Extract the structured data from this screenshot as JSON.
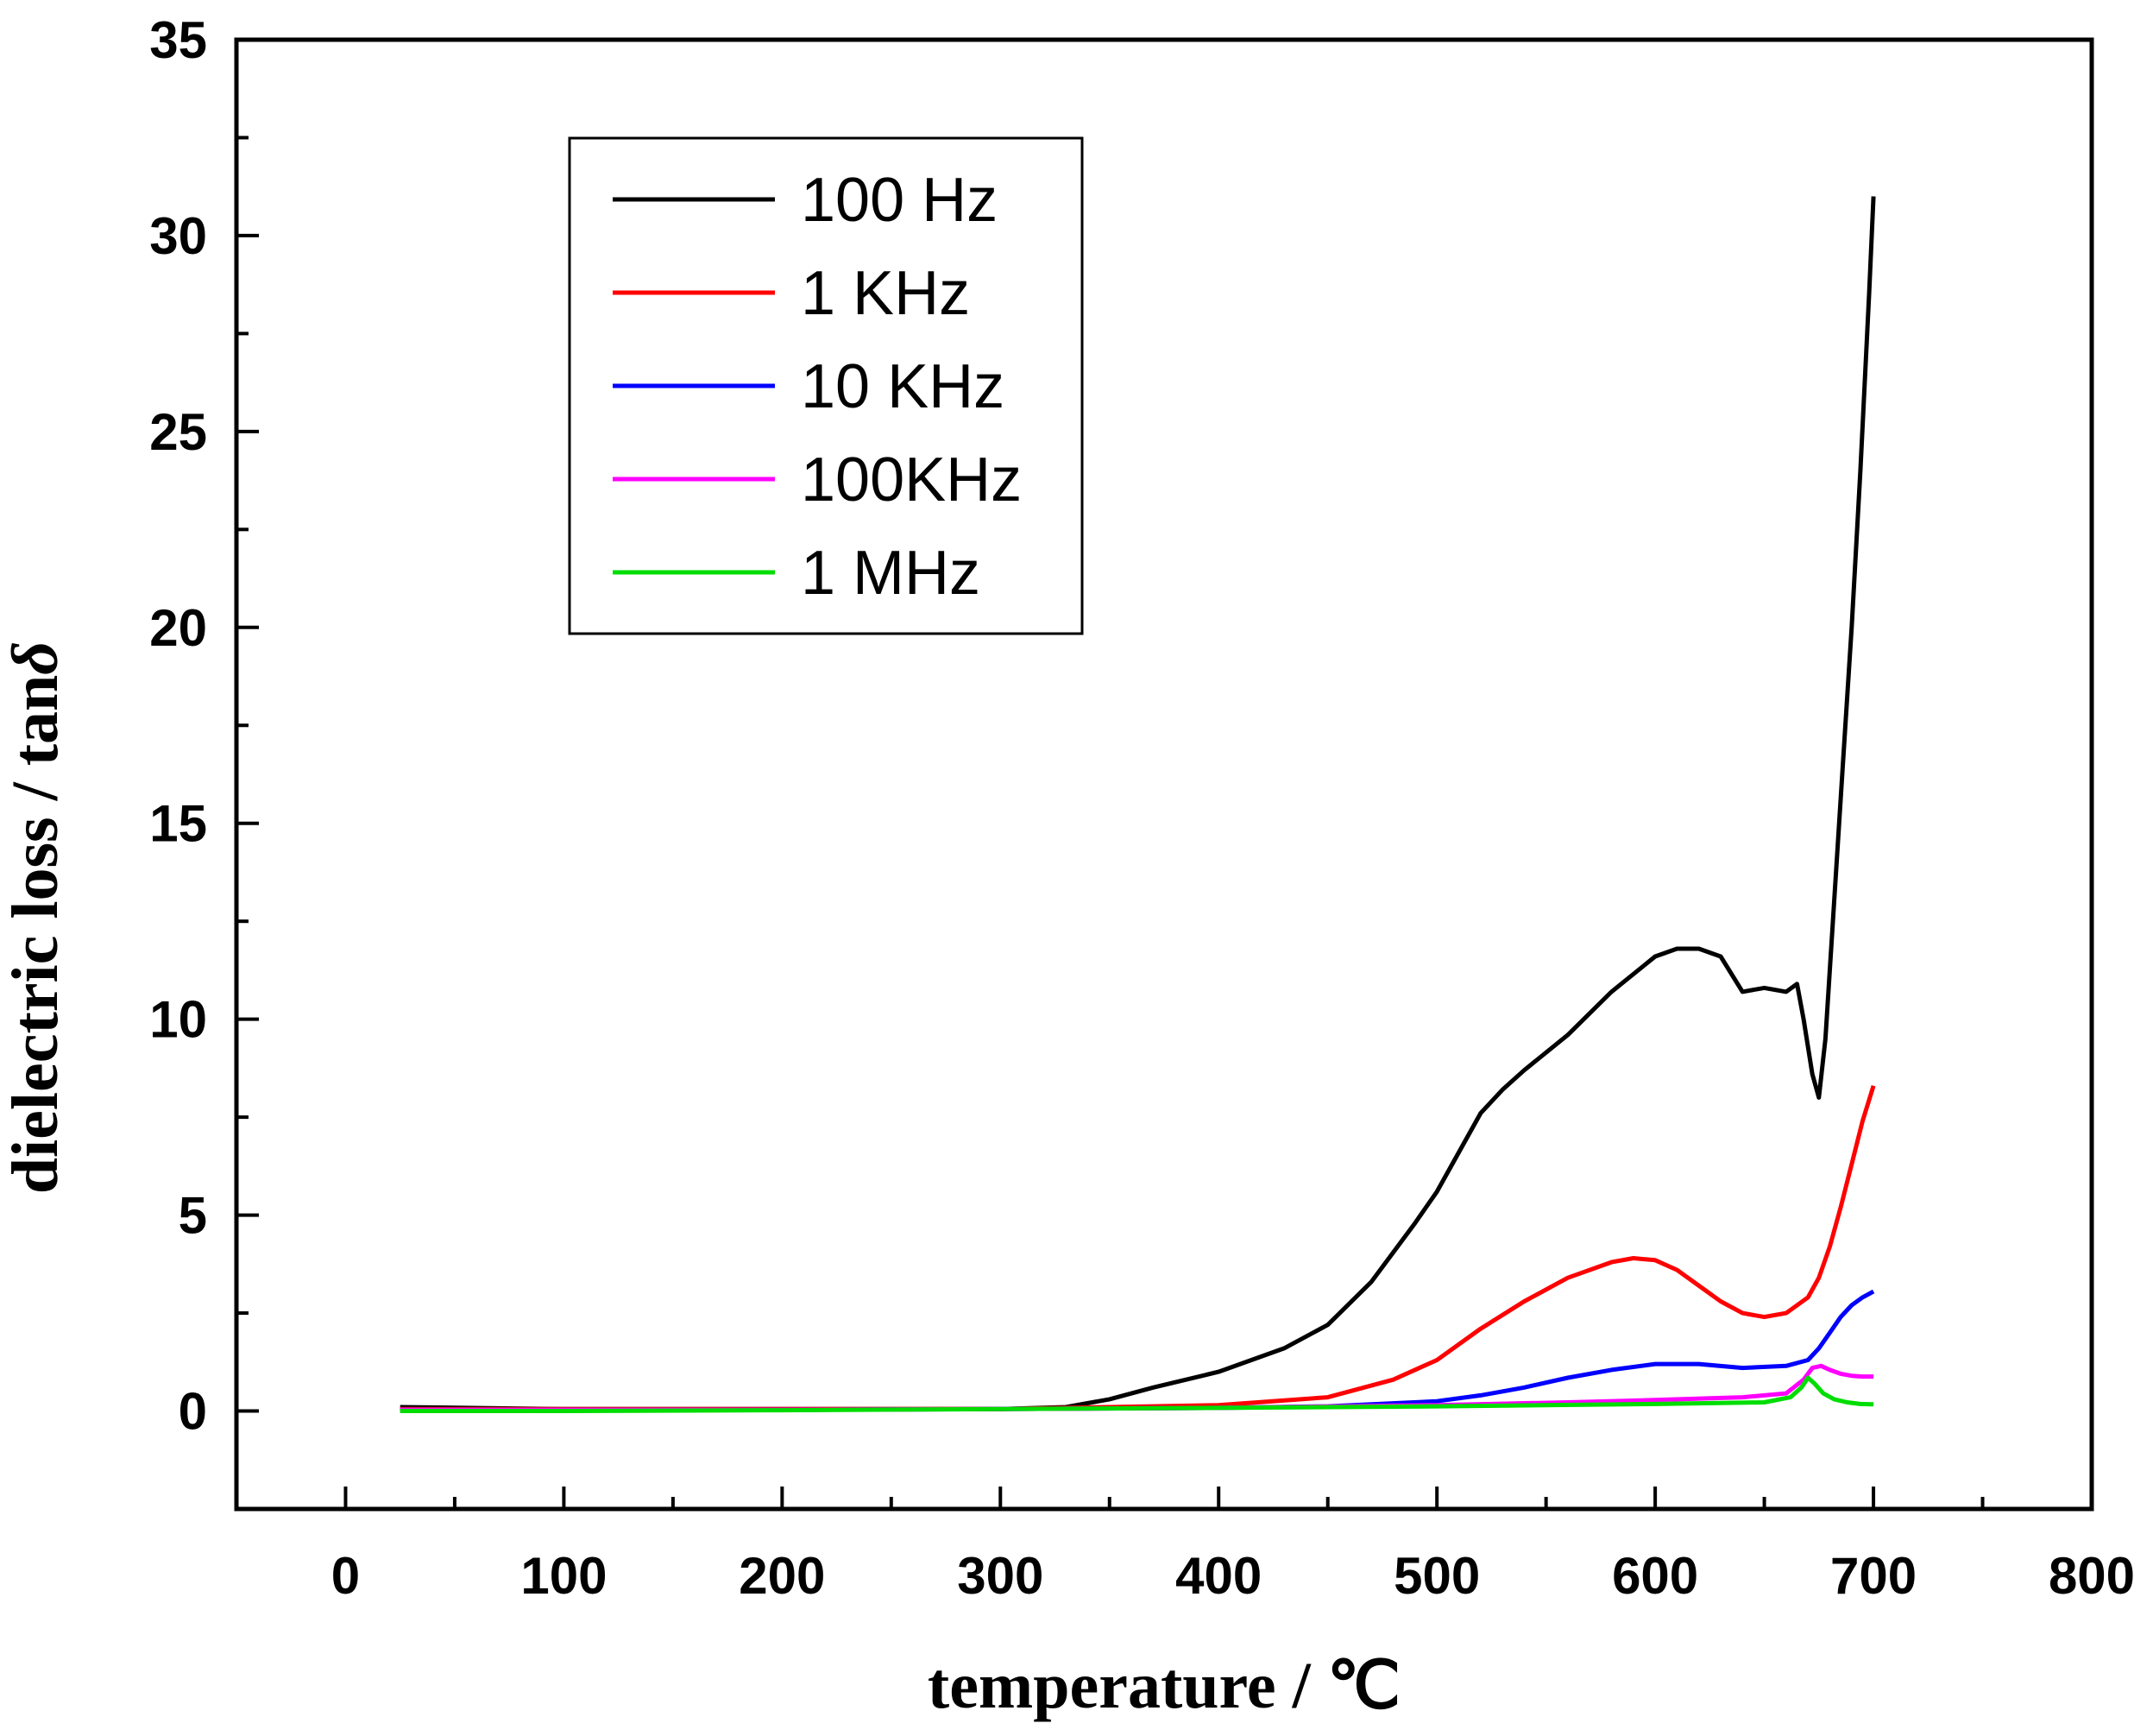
{
  "chart_data": {
    "type": "line",
    "title": "",
    "xlabel": "temperature / ℃",
    "ylabel_prefix": "dielectric loss / tan",
    "ylabel_symbol": "δ",
    "xlim": [
      -50,
      800
    ],
    "ylim": [
      -2.5,
      35
    ],
    "xticks": [
      0,
      100,
      200,
      300,
      400,
      500,
      600,
      700,
      800
    ],
    "yticks": [
      0,
      5,
      10,
      15,
      20,
      25,
      30,
      35
    ],
    "grid": false,
    "legend_position": "top-left",
    "series": [
      {
        "name": "100 Hz",
        "color": "#000000",
        "x": [
          25,
          100,
          200,
          300,
          330,
          350,
          370,
          400,
          430,
          450,
          470,
          490,
          500,
          510,
          520,
          530,
          540,
          560,
          580,
          600,
          610,
          620,
          630,
          640,
          650,
          660,
          665,
          668,
          672,
          675,
          678,
          682,
          686,
          690,
          694,
          698,
          700
        ],
        "values": [
          0.1,
          0.05,
          0.05,
          0.05,
          0.1,
          0.3,
          0.6,
          1.0,
          1.6,
          2.2,
          3.3,
          4.8,
          5.6,
          6.6,
          7.6,
          8.2,
          8.7,
          9.6,
          10.7,
          11.6,
          11.8,
          11.8,
          11.6,
          10.7,
          10.8,
          10.7,
          10.9,
          10.0,
          8.6,
          8.0,
          9.5,
          13.0,
          16.5,
          20.0,
          24.0,
          28.5,
          31.0
        ]
      },
      {
        "name": "1 KHz",
        "color": "#ff0000",
        "x": [
          25,
          100,
          200,
          300,
          350,
          400,
          450,
          480,
          500,
          520,
          540,
          560,
          580,
          590,
          600,
          610,
          620,
          630,
          640,
          650,
          660,
          670,
          675,
          680,
          685,
          690,
          695,
          700
        ],
        "values": [
          0.05,
          0.05,
          0.05,
          0.05,
          0.1,
          0.15,
          0.35,
          0.8,
          1.3,
          2.1,
          2.8,
          3.4,
          3.8,
          3.9,
          3.85,
          3.6,
          3.2,
          2.8,
          2.5,
          2.4,
          2.5,
          2.9,
          3.4,
          4.2,
          5.2,
          6.3,
          7.4,
          8.3
        ]
      },
      {
        "name": "10 KHz",
        "color": "#0000ff",
        "x": [
          25,
          100,
          200,
          300,
          400,
          450,
          500,
          520,
          540,
          560,
          580,
          600,
          620,
          640,
          660,
          670,
          675,
          680,
          685,
          690,
          695,
          700
        ],
        "values": [
          0.03,
          0.03,
          0.03,
          0.05,
          0.08,
          0.12,
          0.25,
          0.4,
          0.6,
          0.85,
          1.05,
          1.2,
          1.2,
          1.1,
          1.15,
          1.3,
          1.6,
          2.0,
          2.4,
          2.7,
          2.9,
          3.05
        ]
      },
      {
        "name": "100KHz",
        "color": "#ff00ff",
        "x": [
          25,
          100,
          200,
          300,
          400,
          500,
          560,
          600,
          640,
          660,
          668,
          672,
          676,
          680,
          685,
          690,
          695,
          700
        ],
        "values": [
          0.03,
          0.03,
          0.03,
          0.05,
          0.08,
          0.15,
          0.22,
          0.28,
          0.35,
          0.45,
          0.8,
          1.1,
          1.15,
          1.05,
          0.95,
          0.9,
          0.88,
          0.88
        ]
      },
      {
        "name": "1 MHz",
        "color": "#00dd00",
        "x": [
          25,
          100,
          200,
          300,
          400,
          500,
          600,
          650,
          662,
          667,
          670,
          673,
          677,
          682,
          688,
          694,
          700
        ],
        "values": [
          0.0,
          0.0,
          0.02,
          0.05,
          0.08,
          0.12,
          0.18,
          0.22,
          0.35,
          0.6,
          0.85,
          0.7,
          0.45,
          0.3,
          0.22,
          0.18,
          0.17
        ]
      }
    ]
  }
}
